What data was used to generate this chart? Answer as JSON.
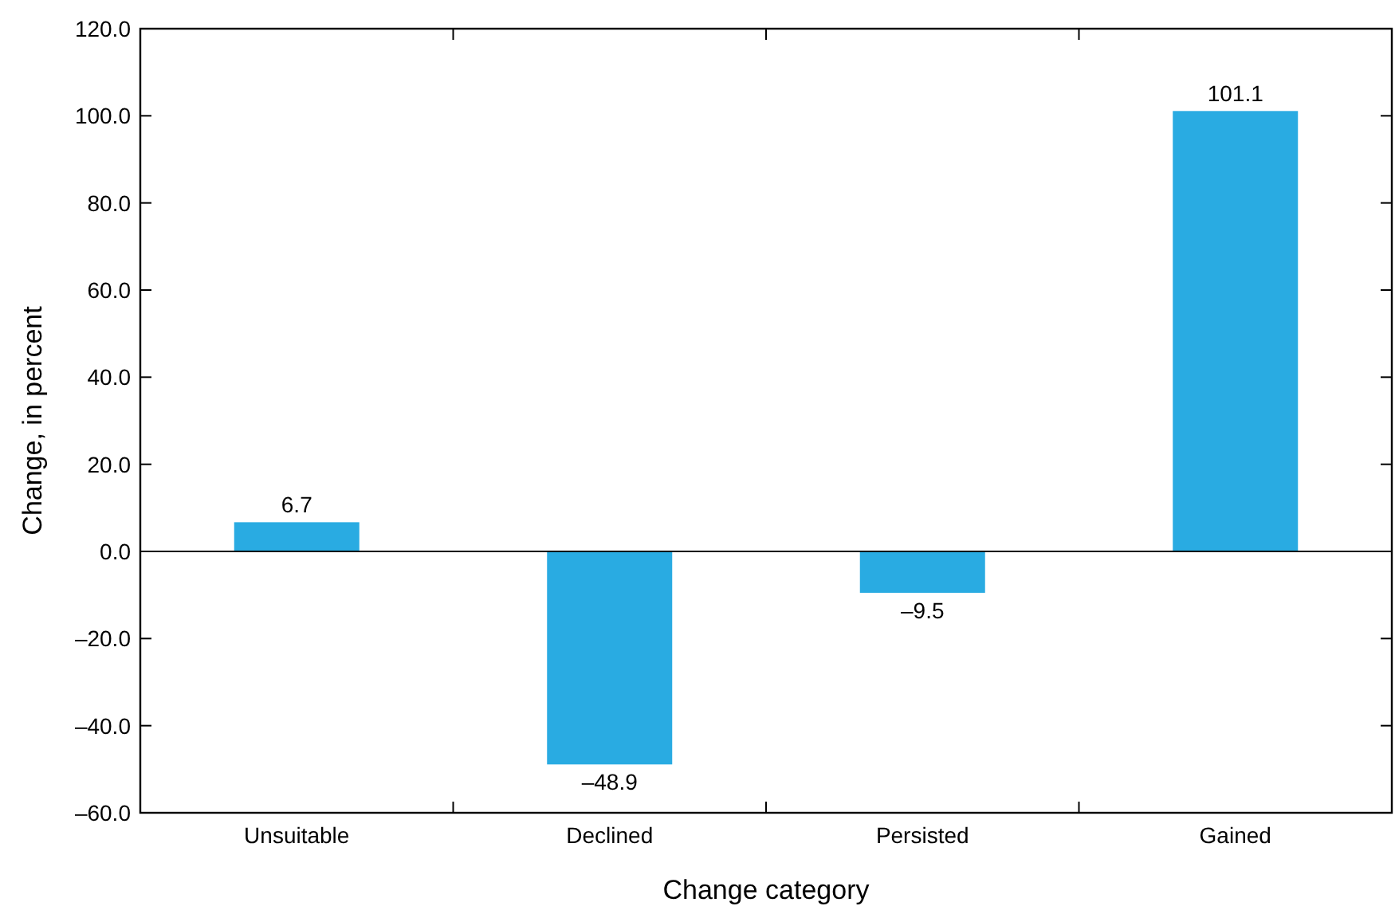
{
  "chart_data": {
    "type": "bar",
    "xlabel": "Change category",
    "ylabel": "Change, in percent",
    "categories": [
      "Unsuitable",
      "Declined",
      "Persisted",
      "Gained"
    ],
    "values": [
      6.7,
      -48.9,
      -9.5,
      101.1
    ],
    "value_labels": [
      "6.7",
      "–48.9",
      "–9.5",
      "101.1"
    ],
    "color": "#29abe2",
    "ylim": [
      -60,
      120
    ],
    "yticks": [
      {
        "value": -60,
        "label": "–60.0"
      },
      {
        "value": -40,
        "label": "–40.0"
      },
      {
        "value": -20,
        "label": "–20.0"
      },
      {
        "value": 0,
        "label": "0.0"
      },
      {
        "value": 20,
        "label": "20.0"
      },
      {
        "value": 40,
        "label": "40.0"
      },
      {
        "value": 60,
        "label": "60.0"
      },
      {
        "value": 80,
        "label": "80.0"
      },
      {
        "value": 100,
        "label": "100.0"
      },
      {
        "value": 120,
        "label": "120.0"
      }
    ],
    "ref_lines": [
      {
        "axis": "y",
        "value": 0,
        "label": null,
        "color": "#000000"
      }
    ],
    "grid": false
  }
}
